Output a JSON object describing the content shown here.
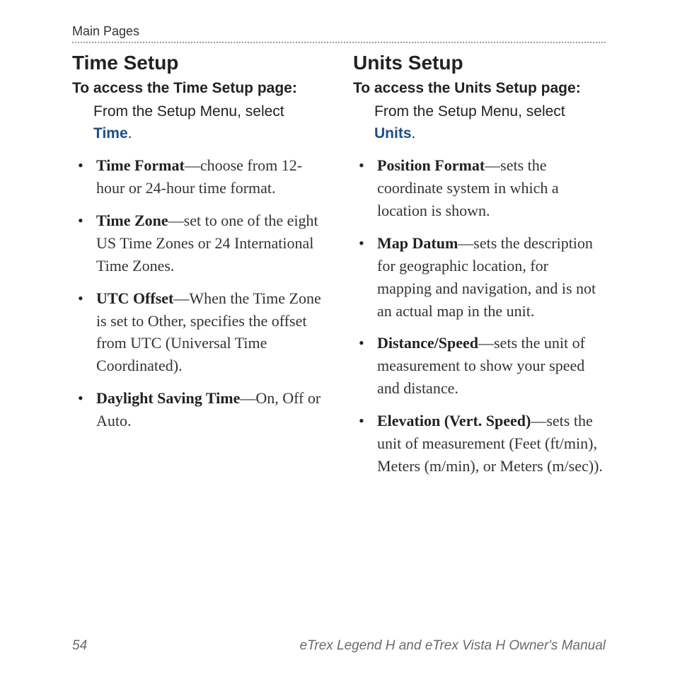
{
  "colors": {
    "text": "#222222",
    "link": "#1b4f8a",
    "muted": "#6b6b6b",
    "rule": "#9a9a9a",
    "background": "#ffffff"
  },
  "typography": {
    "heading_family": "Arial, Helvetica, sans-serif",
    "body_family": "Georgia, 'Times New Roman', serif",
    "h2_size_pt": 21,
    "subhead_size_pt": 16,
    "body_size_pt": 16,
    "footer_size_pt": 14
  },
  "header": {
    "label": "Main Pages"
  },
  "left": {
    "title": "Time Setup",
    "access": "To access the Time Setup page:",
    "instr_prefix": "From the Setup Menu, select ",
    "instr_keyword": "Time",
    "instr_suffix": ".",
    "items": [
      {
        "term": "Time Format",
        "desc": "—choose from 12-hour or 24-hour time format."
      },
      {
        "term": "Time Zone",
        "desc": "—set to one of the eight US Time Zones or 24 International Time Zones."
      },
      {
        "term": "UTC Offset",
        "desc": "—When the Time Zone is set to Other, specifies the offset from UTC (Universal Time Coordinated)."
      },
      {
        "term": "Daylight Saving Time",
        "desc": "—On, Off or Auto."
      }
    ]
  },
  "right": {
    "title": "Units Setup",
    "access": "To access the Units Setup page:",
    "instr_prefix": "From the Setup Menu, select ",
    "instr_keyword": "Units",
    "instr_suffix": ".",
    "items": [
      {
        "term": "Position Format",
        "desc": "—sets the coordinate system in which a location is shown."
      },
      {
        "term": "Map Datum",
        "desc": "—sets the description for geographic location, for mapping and navigation, and is not an actual map in the unit."
      },
      {
        "term": "Distance/Speed",
        "desc": "—sets the unit of measurement to show your speed and distance."
      },
      {
        "term": "Elevation (Vert. Speed)",
        "desc": "—sets the unit of measurement (Feet (ft/min), Meters (m/min), or Meters (m/sec))."
      }
    ]
  },
  "footer": {
    "page": "54",
    "title": "eTrex Legend H and eTrex Vista H Owner's Manual"
  }
}
